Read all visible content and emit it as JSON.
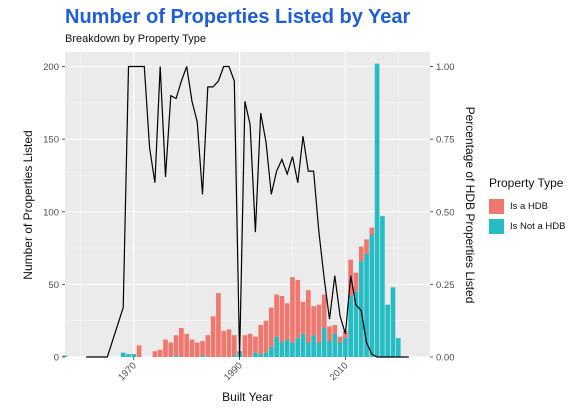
{
  "chart_data": {
    "type": "bar",
    "title": "Number of Properties Listed by Year",
    "subtitle": "Breakdown by Property Type",
    "xlabel": "Built Year",
    "ylabel": "Number of Properties Listed",
    "y2label": "Percentage of HDB Properties Listed",
    "xlim": [
      1957,
      2026
    ],
    "ylim": [
      0,
      210
    ],
    "y2lim": [
      0,
      1.05
    ],
    "x_ticks": [
      "1970",
      "1990",
      "2010"
    ],
    "y_ticks": [
      "0",
      "50",
      "100",
      "150",
      "200"
    ],
    "y2_ticks": [
      "0.00",
      "0.25",
      "0.50",
      "0.75",
      "1.00"
    ],
    "grid": true,
    "legend": {
      "title": "Property Type",
      "placement": "right"
    },
    "stacked": true,
    "series": [
      {
        "name": "Is a HDB",
        "color": "#F0776E",
        "points": [
          [
            1969,
            0
          ],
          [
            1970,
            0
          ],
          [
            1971,
            8
          ],
          [
            1972,
            0
          ],
          [
            1973,
            0
          ],
          [
            1974,
            4
          ],
          [
            1975,
            5
          ],
          [
            1976,
            12
          ],
          [
            1977,
            10
          ],
          [
            1978,
            14
          ],
          [
            1979,
            20
          ],
          [
            1980,
            16
          ],
          [
            1981,
            12
          ],
          [
            1982,
            10
          ],
          [
            1983,
            10
          ],
          [
            1984,
            15
          ],
          [
            1985,
            28
          ],
          [
            1986,
            44
          ],
          [
            1987,
            18
          ],
          [
            1988,
            19
          ],
          [
            1989,
            14
          ],
          [
            1990,
            0
          ],
          [
            1991,
            15
          ],
          [
            1992,
            16
          ],
          [
            1993,
            11
          ],
          [
            1994,
            20
          ],
          [
            1995,
            22
          ],
          [
            1996,
            27
          ],
          [
            1997,
            29
          ],
          [
            1998,
            32
          ],
          [
            1999,
            25
          ],
          [
            2000,
            45
          ],
          [
            2001,
            40
          ],
          [
            2002,
            22
          ],
          [
            2003,
            36
          ],
          [
            2004,
            20
          ],
          [
            2005,
            26
          ],
          [
            2006,
            23
          ],
          [
            2007,
            10
          ],
          [
            2008,
            6
          ],
          [
            2009,
            4
          ],
          [
            2010,
            5
          ],
          [
            2011,
            25
          ],
          [
            2012,
            13
          ],
          [
            2013,
            10
          ],
          [
            2014,
            10
          ],
          [
            2015,
            5
          ],
          [
            2016,
            0
          ],
          [
            2017,
            0
          ],
          [
            2018,
            0
          ],
          [
            2019,
            0
          ],
          [
            2020,
            0
          ],
          [
            2021,
            0
          ]
        ]
      },
      {
        "name": "Is Not a HDB",
        "color": "#26BCC4",
        "points": [
          [
            1957,
            1
          ],
          [
            1968,
            3
          ],
          [
            1969,
            2
          ],
          [
            1970,
            2
          ],
          [
            1971,
            0
          ],
          [
            1973,
            0
          ],
          [
            1974,
            0
          ],
          [
            1975,
            0
          ],
          [
            1976,
            0
          ],
          [
            1977,
            0
          ],
          [
            1978,
            1
          ],
          [
            1979,
            0
          ],
          [
            1980,
            0
          ],
          [
            1981,
            0
          ],
          [
            1982,
            0
          ],
          [
            1983,
            1
          ],
          [
            1984,
            0
          ],
          [
            1985,
            0
          ],
          [
            1986,
            0
          ],
          [
            1987,
            0
          ],
          [
            1988,
            0
          ],
          [
            1989,
            1
          ],
          [
            1990,
            4
          ],
          [
            1991,
            0
          ],
          [
            1992,
            0
          ],
          [
            1993,
            3
          ],
          [
            1994,
            2
          ],
          [
            1995,
            3
          ],
          [
            1996,
            7
          ],
          [
            1997,
            14
          ],
          [
            1998,
            10
          ],
          [
            1999,
            12
          ],
          [
            2000,
            10
          ],
          [
            2001,
            13
          ],
          [
            2002,
            16
          ],
          [
            2003,
            10
          ],
          [
            2004,
            15
          ],
          [
            2005,
            10
          ],
          [
            2006,
            20
          ],
          [
            2007,
            11
          ],
          [
            2008,
            16
          ],
          [
            2009,
            10
          ],
          [
            2010,
            13
          ],
          [
            2011,
            42
          ],
          [
            2012,
            45
          ],
          [
            2013,
            66
          ],
          [
            2014,
            71
          ],
          [
            2015,
            84
          ],
          [
            2016,
            202
          ],
          [
            2017,
            97
          ],
          [
            2018,
            36
          ],
          [
            2019,
            48
          ],
          [
            2020,
            13
          ]
        ]
      },
      {
        "name": "Percentage of HDB Properties Listed",
        "axis": "right",
        "type": "line",
        "color": "#000000",
        "points": [
          [
            1961,
            0
          ],
          [
            1962,
            0
          ],
          [
            1963,
            0
          ],
          [
            1964,
            0
          ],
          [
            1965,
            0
          ],
          [
            1968,
            0.17
          ],
          [
            1969,
            1.0
          ],
          [
            1970,
            1.0
          ],
          [
            1971,
            1.0
          ],
          [
            1972,
            1.0
          ],
          [
            1973,
            0.72
          ],
          [
            1974,
            0.6
          ],
          [
            1975,
            1.0
          ],
          [
            1976,
            0.62
          ],
          [
            1977,
            0.9
          ],
          [
            1978,
            0.89
          ],
          [
            1979,
            0.95
          ],
          [
            1980,
            1.0
          ],
          [
            1981,
            0.88
          ],
          [
            1982,
            0.81
          ],
          [
            1983,
            0.56
          ],
          [
            1984,
            0.93
          ],
          [
            1985,
            0.93
          ],
          [
            1986,
            0.95
          ],
          [
            1987,
            1.0
          ],
          [
            1988,
            1.0
          ],
          [
            1989,
            0.95
          ],
          [
            1990,
            0
          ],
          [
            1991,
            0.88
          ],
          [
            1992,
            0.8
          ],
          [
            1993,
            0.43
          ],
          [
            1994,
            0.84
          ],
          [
            1995,
            0.74
          ],
          [
            1996,
            0.56
          ],
          [
            1997,
            0.64
          ],
          [
            1998,
            0.68
          ],
          [
            1999,
            0.63
          ],
          [
            2000,
            0.69
          ],
          [
            2001,
            0.6
          ],
          [
            2002,
            0.76
          ],
          [
            2003,
            0.64
          ],
          [
            2004,
            0.64
          ],
          [
            2005,
            0.43
          ],
          [
            2006,
            0.27
          ],
          [
            2007,
            0.13
          ],
          [
            2008,
            0.28
          ],
          [
            2009,
            0.14
          ],
          [
            2010,
            0.08
          ],
          [
            2011,
            0.28
          ],
          [
            2012,
            0.18
          ],
          [
            2013,
            0.16
          ],
          [
            2014,
            0.05
          ],
          [
            2015,
            0.01
          ],
          [
            2016,
            0
          ],
          [
            2017,
            0
          ],
          [
            2018,
            0
          ],
          [
            2019,
            0
          ],
          [
            2020,
            0
          ],
          [
            2021,
            0
          ],
          [
            2022,
            0
          ]
        ]
      }
    ]
  }
}
